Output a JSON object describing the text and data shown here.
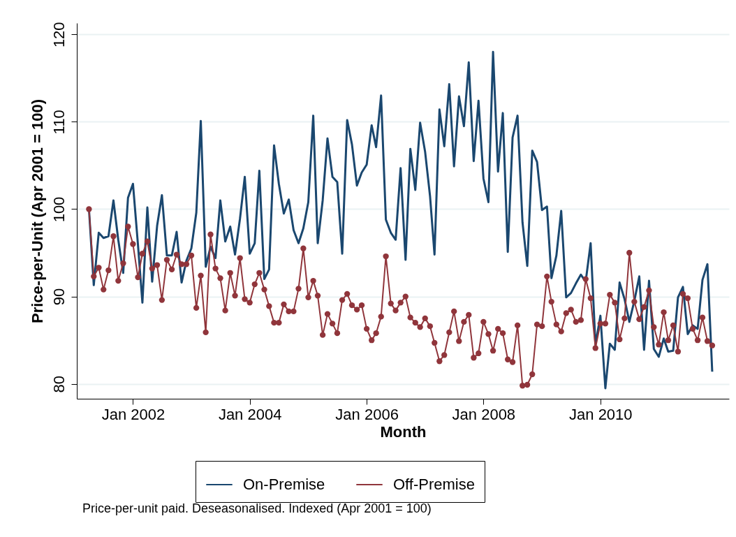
{
  "chart_data": {
    "type": "line",
    "xlabel": "Month",
    "ylabel": "Price-per-Unit (Apr 2001 = 100)",
    "annotations": [
      "Price-per-unit paid. Deseasonalised. Indexed (Apr 2001 = 100)"
    ],
    "x": [
      "2001-04",
      "2001-05",
      "2001-06",
      "2001-07",
      "2001-08",
      "2001-09",
      "2001-10",
      "2001-11",
      "2001-12",
      "2002-01",
      "2002-02",
      "2002-03",
      "2002-04",
      "2002-05",
      "2002-06",
      "2002-07",
      "2002-08",
      "2002-09",
      "2002-10",
      "2002-11",
      "2002-12",
      "2003-01",
      "2003-02",
      "2003-03",
      "2003-04",
      "2003-05",
      "2003-06",
      "2003-07",
      "2003-08",
      "2003-09",
      "2003-10",
      "2003-11",
      "2003-12",
      "2004-01",
      "2004-02",
      "2004-03",
      "2004-04",
      "2004-05",
      "2004-06",
      "2004-07",
      "2004-08",
      "2004-09",
      "2004-10",
      "2004-11",
      "2004-12",
      "2005-01",
      "2005-02",
      "2005-03",
      "2005-04",
      "2005-05",
      "2005-06",
      "2005-07",
      "2005-08",
      "2005-09",
      "2005-10",
      "2005-11",
      "2005-12",
      "2006-01",
      "2006-02",
      "2006-03",
      "2006-04",
      "2006-05",
      "2006-06",
      "2006-07",
      "2006-08",
      "2006-09",
      "2006-10",
      "2006-11",
      "2006-12",
      "2007-01",
      "2007-02",
      "2007-03",
      "2007-04",
      "2007-05",
      "2007-06",
      "2007-07",
      "2007-08",
      "2007-09",
      "2007-10",
      "2007-11",
      "2007-12",
      "2008-01",
      "2008-02",
      "2008-03",
      "2008-04",
      "2008-05",
      "2008-06",
      "2008-07",
      "2008-08",
      "2008-09",
      "2008-10",
      "2008-11",
      "2008-12",
      "2009-01",
      "2009-02",
      "2009-03",
      "2009-04",
      "2009-05",
      "2009-06",
      "2009-07",
      "2009-08",
      "2009-09",
      "2009-10",
      "2009-11",
      "2009-12",
      "2010-01",
      "2010-02",
      "2010-03",
      "2010-04",
      "2010-05",
      "2010-06",
      "2010-07",
      "2010-08",
      "2010-09",
      "2010-10",
      "2010-11",
      "2010-12",
      "2011-01",
      "2011-02",
      "2011-03",
      "2011-04",
      "2011-05",
      "2011-06",
      "2011-07",
      "2011-08",
      "2011-09",
      "2011-10",
      "2011-11",
      "2011-12"
    ],
    "series": [
      {
        "name": "On-Premise",
        "color": "#1a476f",
        "marker": "none",
        "values": [
          100,
          91.3,
          97.3,
          96.7,
          96.9,
          101.0,
          96.5,
          92.7,
          101.3,
          102.9,
          96.0,
          89.3,
          100.2,
          91.7,
          98.1,
          101.6,
          94.7,
          94.7,
          97.4,
          91.6,
          94.1,
          95.5,
          99.6,
          110.1,
          93.4,
          95.7,
          94.4,
          101.0,
          96.3,
          98.0,
          94.8,
          98.9,
          103.7,
          94.9,
          96.1,
          104.4,
          92.0,
          93.1,
          107.3,
          102.9,
          99.5,
          101.1,
          97.6,
          96.1,
          97.8,
          100.8,
          110.7,
          96.1,
          101.0,
          108.1,
          103.7,
          103.1,
          94.9,
          110.2,
          107.4,
          102.7,
          104.2,
          105.1,
          109.6,
          107.1,
          113.0,
          98.8,
          97.3,
          96.5,
          104.7,
          94.2,
          106.9,
          102.2,
          109.9,
          106.6,
          101.5,
          94.8,
          111.4,
          107.2,
          114.3,
          104.9,
          112.9,
          109.5,
          116.8,
          105.5,
          112.4,
          103.5,
          100.8,
          118.0,
          104.3,
          111.0,
          95.1,
          108.2,
          110.7,
          98.5,
          93.5,
          106.7,
          105.4,
          99.9,
          100.3,
          92.1,
          94.7,
          99.8,
          89.9,
          90.4,
          91.5,
          92.5,
          91.7,
          96.1,
          84.5,
          87.8,
          79.5,
          84.6,
          83.9,
          91.6,
          89.7,
          87.1,
          89.5,
          92.3,
          83.9,
          91.8,
          84.0,
          83.1,
          85.2,
          83.7,
          83.8,
          89.9,
          91.1,
          85.7,
          86.7,
          86.3,
          91.9,
          93.7,
          81.4
        ]
      },
      {
        "name": "Off-Premise",
        "color": "#90353b",
        "marker": "circle",
        "values": [
          100,
          92.3,
          93.3,
          90.8,
          93.0,
          96.9,
          91.8,
          93.8,
          98.0,
          96.0,
          92.2,
          94.9,
          96.3,
          93.2,
          93.6,
          89.6,
          94.2,
          93.1,
          94.8,
          93.7,
          93.7,
          94.7,
          88.7,
          92.4,
          85.9,
          97.1,
          93.2,
          92.1,
          88.4,
          92.7,
          90.1,
          94.4,
          89.7,
          89.3,
          91.4,
          92.7,
          90.8,
          88.9,
          87.0,
          87.0,
          89.1,
          88.3,
          88.3,
          90.9,
          95.5,
          89.9,
          91.8,
          90.1,
          85.6,
          88.0,
          86.9,
          85.8,
          89.6,
          90.3,
          89.0,
          88.5,
          89.0,
          86.3,
          85.0,
          85.8,
          87.7,
          94.6,
          89.2,
          88.4,
          89.3,
          90.0,
          87.6,
          87.0,
          86.5,
          87.5,
          86.6,
          84.7,
          82.6,
          83.3,
          85.9,
          88.3,
          84.9,
          87.1,
          87.9,
          83.0,
          83.5,
          87.1,
          85.7,
          83.8,
          86.3,
          85.8,
          82.8,
          82.5,
          86.7,
          79.8,
          79.9,
          81.1,
          86.8,
          86.6,
          92.3,
          89.4,
          86.8,
          86.0,
          88.1,
          88.5,
          87.1,
          87.3,
          92.0,
          89.8,
          84.1,
          86.9,
          86.9,
          90.2,
          89.3,
          85.1,
          87.5,
          95.0,
          89.4,
          87.4,
          88.8,
          90.7,
          86.5,
          84.5,
          88.2,
          85.0,
          86.7,
          83.7,
          90.3,
          89.8,
          86.3,
          85.0,
          87.6,
          84.9,
          84.4
        ]
      }
    ],
    "xlim": [
      "2001-01-15",
      "2012-03-15"
    ],
    "xticks": [
      {
        "value": "2002-01",
        "label": "Jan 2002"
      },
      {
        "value": "2004-01",
        "label": "Jan 2004"
      },
      {
        "value": "2006-01",
        "label": "Jan 2006"
      },
      {
        "value": "2008-01",
        "label": "Jan 2008"
      },
      {
        "value": "2010-01",
        "label": "Jan 2010"
      }
    ],
    "ylim": [
      78.3,
      121.3
    ],
    "yticks": [
      80,
      90,
      100,
      110,
      120
    ],
    "grid": "y",
    "legend": "bottom",
    "line_style": "solid"
  }
}
